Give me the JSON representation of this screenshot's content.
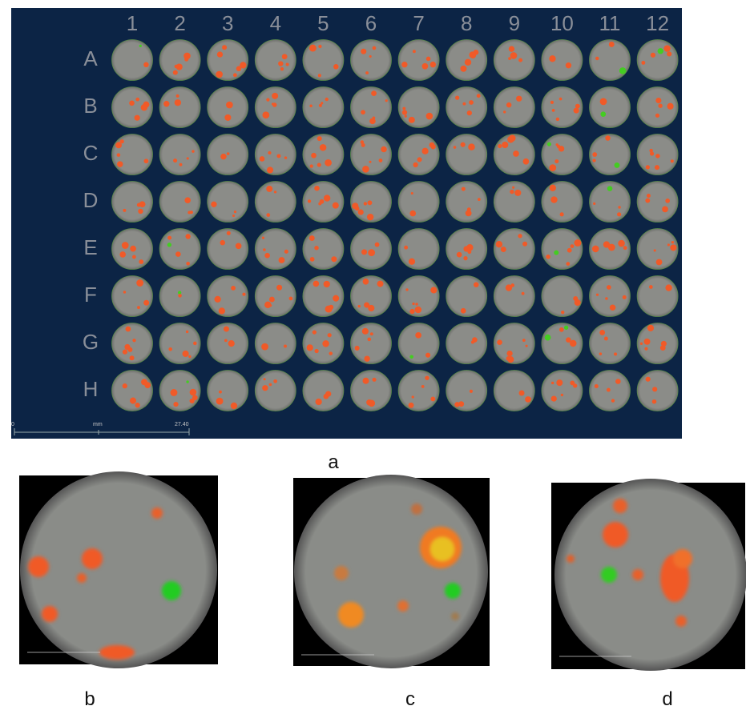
{
  "panel_a": {
    "column_labels": [
      "1",
      "2",
      "3",
      "4",
      "5",
      "6",
      "7",
      "8",
      "9",
      "10",
      "11",
      "12"
    ],
    "row_labels": [
      "A",
      "B",
      "C",
      "D",
      "E",
      "F",
      "G",
      "H"
    ],
    "scale_bar": {
      "start": "0",
      "unit": "mm",
      "end": "27.40"
    }
  },
  "panel_labels": [
    "a",
    "b",
    "c",
    "d"
  ]
}
